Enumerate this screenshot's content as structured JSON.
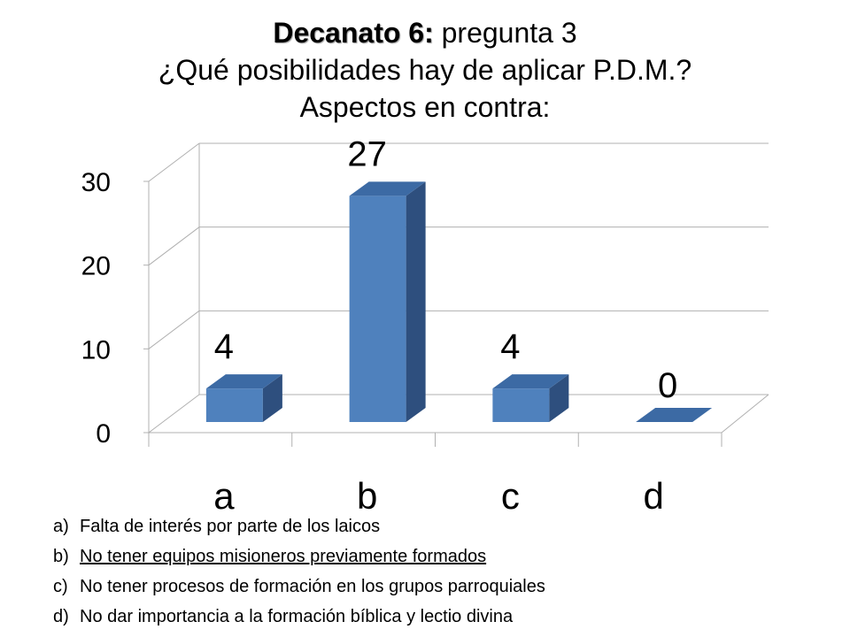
{
  "title": {
    "bold": "Decanato 6:",
    "rest": " pregunta 3",
    "line2": "¿Qué posibilidades hay de aplicar P.D.M.?",
    "line3": "Aspectos en contra:"
  },
  "chart_data": {
    "type": "bar",
    "style": "3d-column",
    "categories": [
      "a",
      "b",
      "c",
      "d"
    ],
    "values": [
      4,
      27,
      4,
      0
    ],
    "data_labels": [
      "4",
      "27",
      "4",
      "0"
    ],
    "yticks": [
      0,
      10,
      20,
      30
    ],
    "ylim": [
      0,
      30
    ],
    "grid": true,
    "bar_color": "#4F81BD",
    "bar_side_color": "#2E4F7E",
    "bar_top_color": "#3C6AA4"
  },
  "legend": [
    {
      "key": "a)",
      "text": "Falta de interés por parte de los laicos",
      "underline": false
    },
    {
      "key": "b)",
      "text": "No tener equipos misioneros previamente formados",
      "underline": true
    },
    {
      "key": "c)",
      "text": "No tener procesos de formación en los grupos parroquiales",
      "underline": false
    },
    {
      "key": "d)",
      "text": "No dar importancia a la formación bíblica y lectio divina",
      "underline": false
    }
  ]
}
